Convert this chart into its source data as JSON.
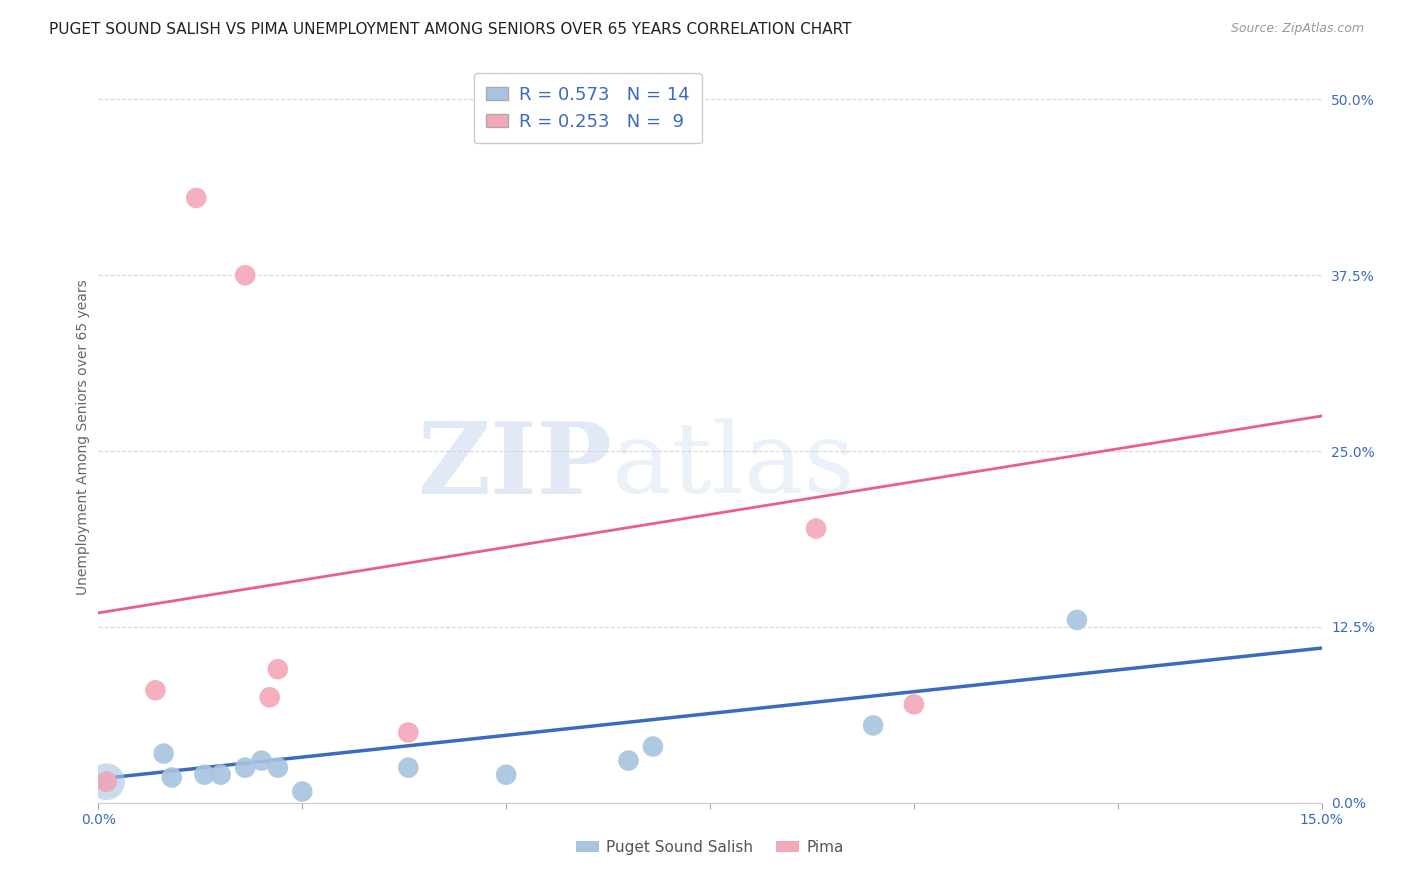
{
  "title": "PUGET SOUND SALISH VS PIMA UNEMPLOYMENT AMONG SENIORS OVER 65 YEARS CORRELATION CHART",
  "source": "Source: ZipAtlas.com",
  "ylabel": "Unemployment Among Seniors over 65 years",
  "xlim": [
    0.0,
    0.15
  ],
  "ylim": [
    0.0,
    0.52
  ],
  "xticks": [
    0.0,
    0.025,
    0.05,
    0.075,
    0.1,
    0.125,
    0.15
  ],
  "xtick_labels": [
    "0.0%",
    "",
    "",
    "",
    "",
    "",
    "15.0%"
  ],
  "yticks_right": [
    0.0,
    0.125,
    0.25,
    0.375,
    0.5
  ],
  "ytick_right_labels": [
    "0.0%",
    "12.5%",
    "25.0%",
    "37.5%",
    "50.0%"
  ],
  "blue_color": "#a8c4e0",
  "pink_color": "#f4a8b8",
  "blue_line_color": "#3a6bbf",
  "pink_line_color": "#e8608a",
  "blue_R": 0.573,
  "blue_N": 14,
  "pink_R": 0.253,
  "pink_N": 9,
  "legend_label_blue": "Puget Sound Salish",
  "legend_label_pink": "Pima",
  "watermark_zip": "ZIP",
  "watermark_atlas": "atlas",
  "blue_scatter_x": [
    0.001,
    0.008,
    0.009,
    0.013,
    0.015,
    0.018,
    0.02,
    0.022,
    0.038,
    0.05,
    0.065,
    0.068,
    0.095,
    0.12
  ],
  "blue_scatter_y": [
    0.015,
    0.035,
    0.018,
    0.02,
    0.02,
    0.025,
    0.03,
    0.025,
    0.025,
    0.02,
    0.03,
    0.04,
    0.055,
    0.13
  ],
  "blue_low_x": [
    0.025
  ],
  "blue_low_y": [
    0.008
  ],
  "pink_scatter_x": [
    0.001,
    0.007,
    0.012,
    0.018,
    0.021,
    0.022,
    0.038,
    0.088,
    0.1
  ],
  "pink_scatter_y": [
    0.015,
    0.08,
    0.43,
    0.375,
    0.075,
    0.095,
    0.05,
    0.195,
    0.07
  ],
  "blue_trend_x": [
    0.0,
    0.15
  ],
  "blue_trend_y": [
    0.017,
    0.11
  ],
  "pink_trend_x": [
    0.0,
    0.15
  ],
  "pink_trend_y": [
    0.135,
    0.275
  ],
  "title_fontsize": 11,
  "axis_label_fontsize": 10,
  "tick_fontsize": 10,
  "legend_fontsize": 13,
  "background_color": "#ffffff",
  "grid_color": "#d8d8d8"
}
